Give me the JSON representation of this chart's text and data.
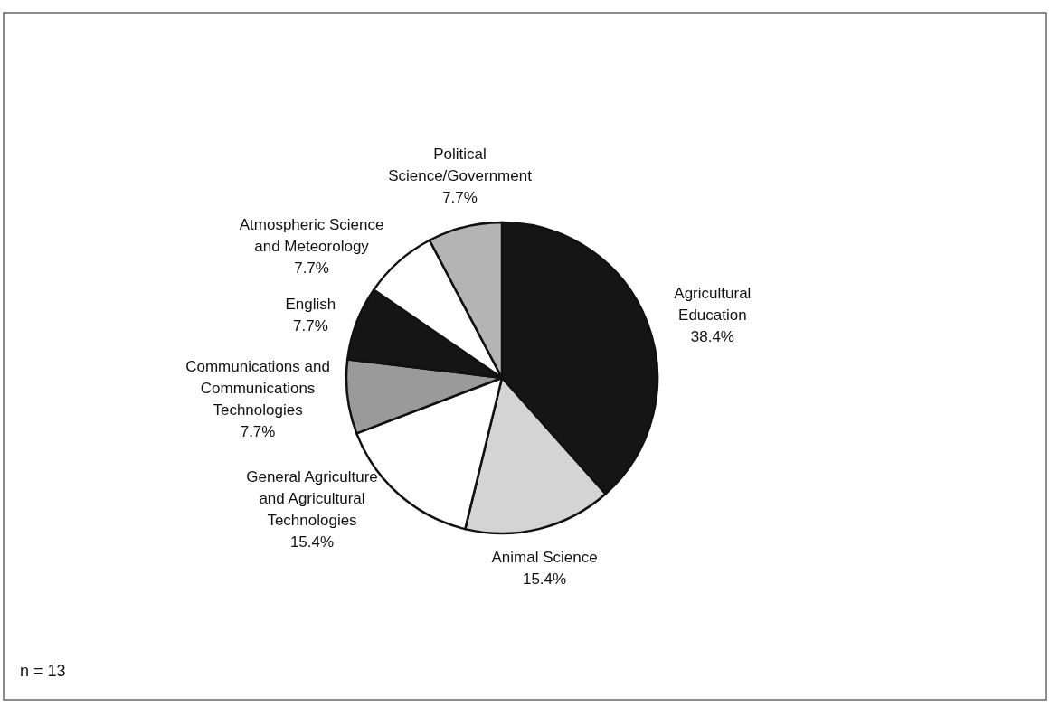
{
  "chart_data": {
    "type": "pie",
    "categories": [
      "Agricultural Education",
      "Animal Science",
      "General Agriculture and Agricultural Technologies",
      "Communications and Communications Technologies",
      "English",
      "Atmospheric Science and Meteorology",
      "Political Science/Government"
    ],
    "values": [
      38.4,
      15.4,
      15.4,
      7.7,
      7.7,
      7.7,
      7.7
    ],
    "value_labels": [
      "38.4%",
      "15.4%",
      "15.4%",
      "7.7%",
      "7.7%",
      "7.7%",
      "7.7%"
    ],
    "colors": [
      "#151515",
      "#d4d4d4",
      "#ffffff",
      "#9a9a9a",
      "#151515",
      "#ffffff",
      "#b4b4b4"
    ],
    "annotations": [
      "n = 13"
    ]
  }
}
